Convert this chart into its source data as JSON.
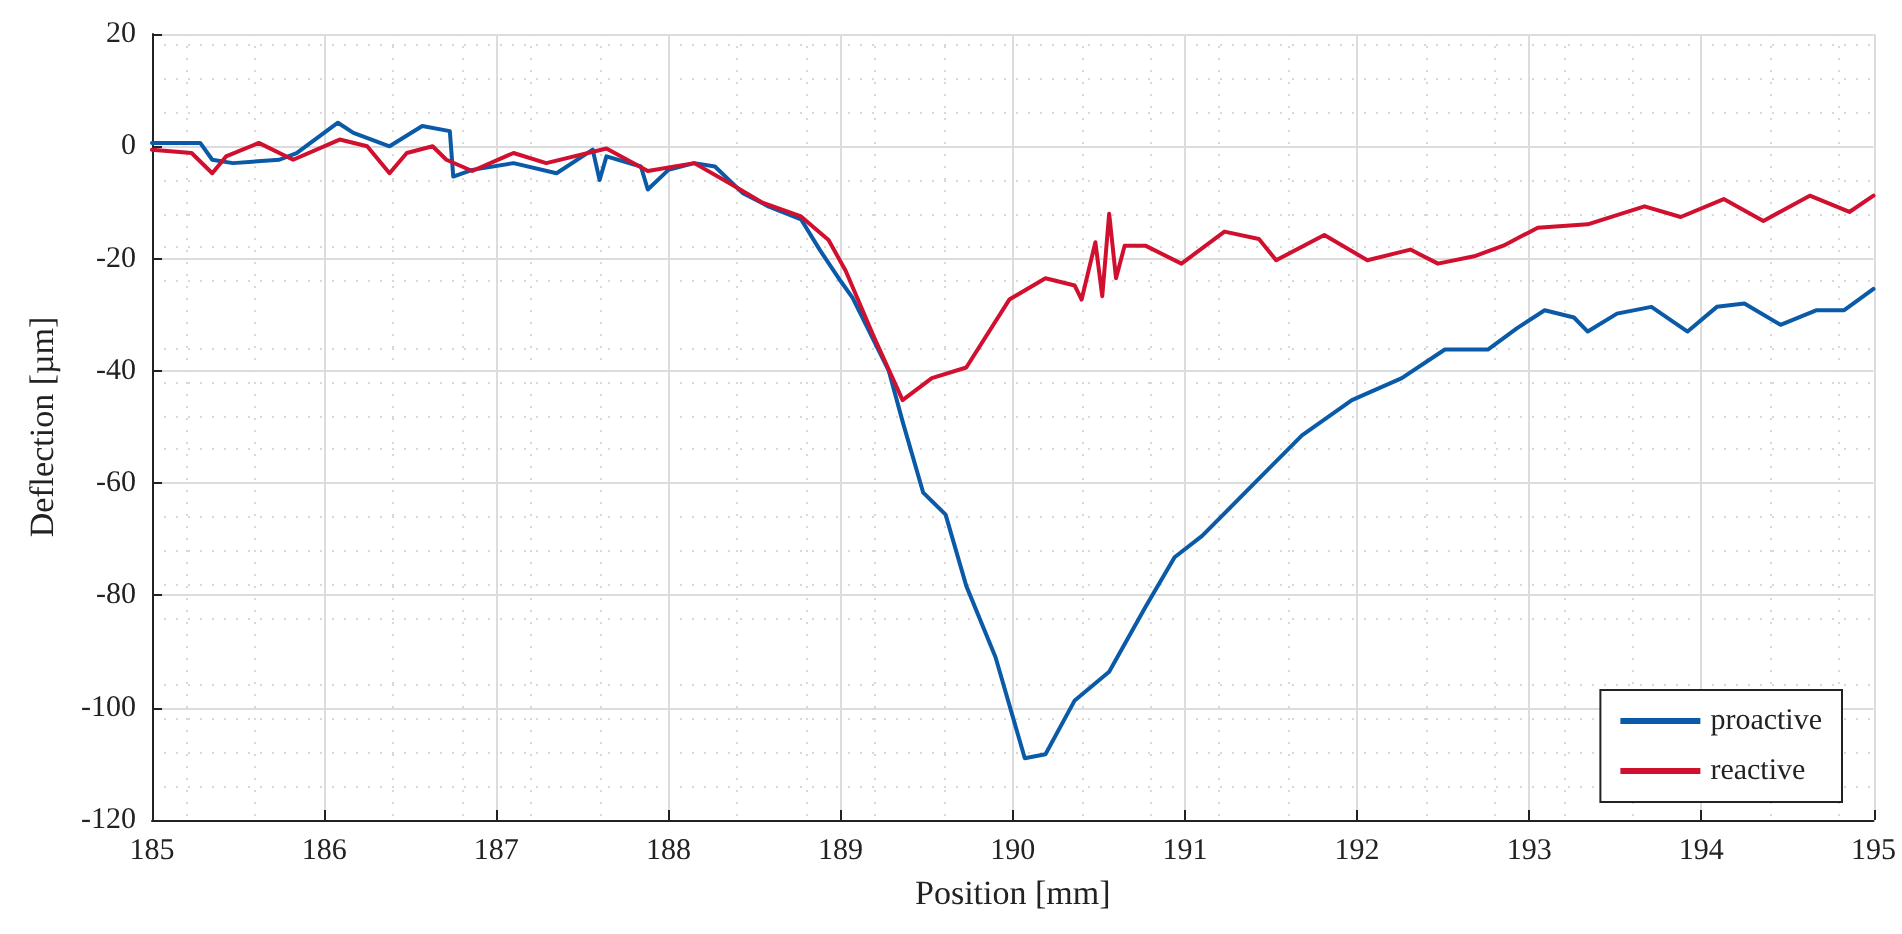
{
  "chart_data": {
    "type": "line",
    "xlabel": "Position [mm]",
    "ylabel": "Deflection [µm]",
    "xlim": [
      185,
      195
    ],
    "xticks": [
      185,
      186,
      187,
      188,
      189,
      190,
      191,
      192,
      193,
      194,
      195
    ],
    "ylim": [
      -120,
      20
    ],
    "yticks": [
      -120,
      -100,
      -80,
      -60,
      -40,
      -20,
      0,
      20
    ],
    "grid": true,
    "legend": "bottom right",
    "marker": "none",
    "line_style": "solid",
    "series": [
      {
        "name": "proactive",
        "color": "#0a5aa8",
        "x": [
          185.0,
          185.28,
          185.35,
          185.47,
          185.74,
          185.84,
          186.08,
          186.17,
          186.38,
          186.57,
          186.73,
          186.75,
          186.86,
          187.1,
          187.35,
          187.56,
          187.6,
          187.64,
          187.84,
          187.88,
          188.0,
          188.15,
          188.27,
          188.43,
          188.58,
          188.77,
          188.88,
          189.0,
          189.07,
          189.28,
          189.36,
          189.48,
          189.61,
          189.73,
          189.9,
          190.07,
          190.19,
          190.36,
          190.56,
          190.77,
          190.94,
          191.1,
          191.43,
          191.68,
          191.97,
          192.26,
          192.51,
          192.76,
          192.93,
          193.09,
          193.26,
          193.34,
          193.51,
          193.71,
          193.92,
          194.09,
          194.25,
          194.46,
          194.67,
          194.83,
          195.0
        ],
        "values": [
          0.6,
          0.6,
          -2.4,
          -3,
          -2.4,
          -1.2,
          4.2,
          2.4,
          0,
          3.6,
          2.7,
          -5.4,
          -4.2,
          -3,
          -4.8,
          -0.6,
          -6,
          -1.8,
          -3.6,
          -7.7,
          -4.2,
          -3,
          -3.6,
          -8.3,
          -10.7,
          -13,
          -18.5,
          -24,
          -27,
          -40,
          -49,
          -61.7,
          -65.6,
          -78.3,
          -91,
          -109,
          -108.3,
          -98.7,
          -93.6,
          -82.1,
          -73.2,
          -69.4,
          -59.2,
          -51.5,
          -45.2,
          -41.3,
          -36.2,
          -36.2,
          -32.4,
          -29.2,
          -30.5,
          -33,
          -29.8,
          -28.6,
          -33,
          -28.6,
          -28,
          -31.8,
          -29.2,
          -29.2,
          -25.4
        ]
      },
      {
        "name": "reactive",
        "color": "#d0102e",
        "x": [
          185.0,
          185.23,
          185.35,
          185.43,
          185.62,
          185.82,
          186.09,
          186.25,
          186.38,
          186.48,
          186.63,
          186.71,
          186.86,
          187.1,
          187.29,
          187.64,
          187.88,
          188.15,
          188.35,
          188.55,
          188.77,
          188.93,
          189.03,
          189.19,
          189.36,
          189.53,
          189.73,
          189.98,
          190.19,
          190.36,
          190.4,
          190.48,
          190.52,
          190.56,
          190.6,
          190.65,
          190.77,
          190.98,
          191.23,
          191.43,
          191.53,
          191.81,
          192.06,
          192.31,
          192.47,
          192.68,
          192.85,
          193.05,
          193.34,
          193.67,
          193.88,
          194.13,
          194.36,
          194.63,
          194.86,
          195.0
        ],
        "values": [
          -0.6,
          -1.2,
          -4.8,
          -1.8,
          0.6,
          -2.4,
          1.2,
          0,
          -4.8,
          -1.2,
          0,
          -2.4,
          -4.4,
          -1.2,
          -3,
          -0.4,
          -4.4,
          -3,
          -6.5,
          -10.1,
          -12.5,
          -16.7,
          -22.2,
          -33.7,
          -45.2,
          -41.3,
          -39.4,
          -27.3,
          -23.5,
          -24.8,
          -27.3,
          -17.1,
          -26.7,
          -12,
          -23.5,
          -17.7,
          -17.7,
          -20.9,
          -15.2,
          -16.5,
          -20.3,
          -15.8,
          -20.3,
          -18.4,
          -20.9,
          -19.6,
          -17.7,
          -14.5,
          -13.9,
          -10.7,
          -12.6,
          -9.4,
          -13.3,
          -8.8,
          -11.7,
          -8.8
        ]
      }
    ]
  }
}
